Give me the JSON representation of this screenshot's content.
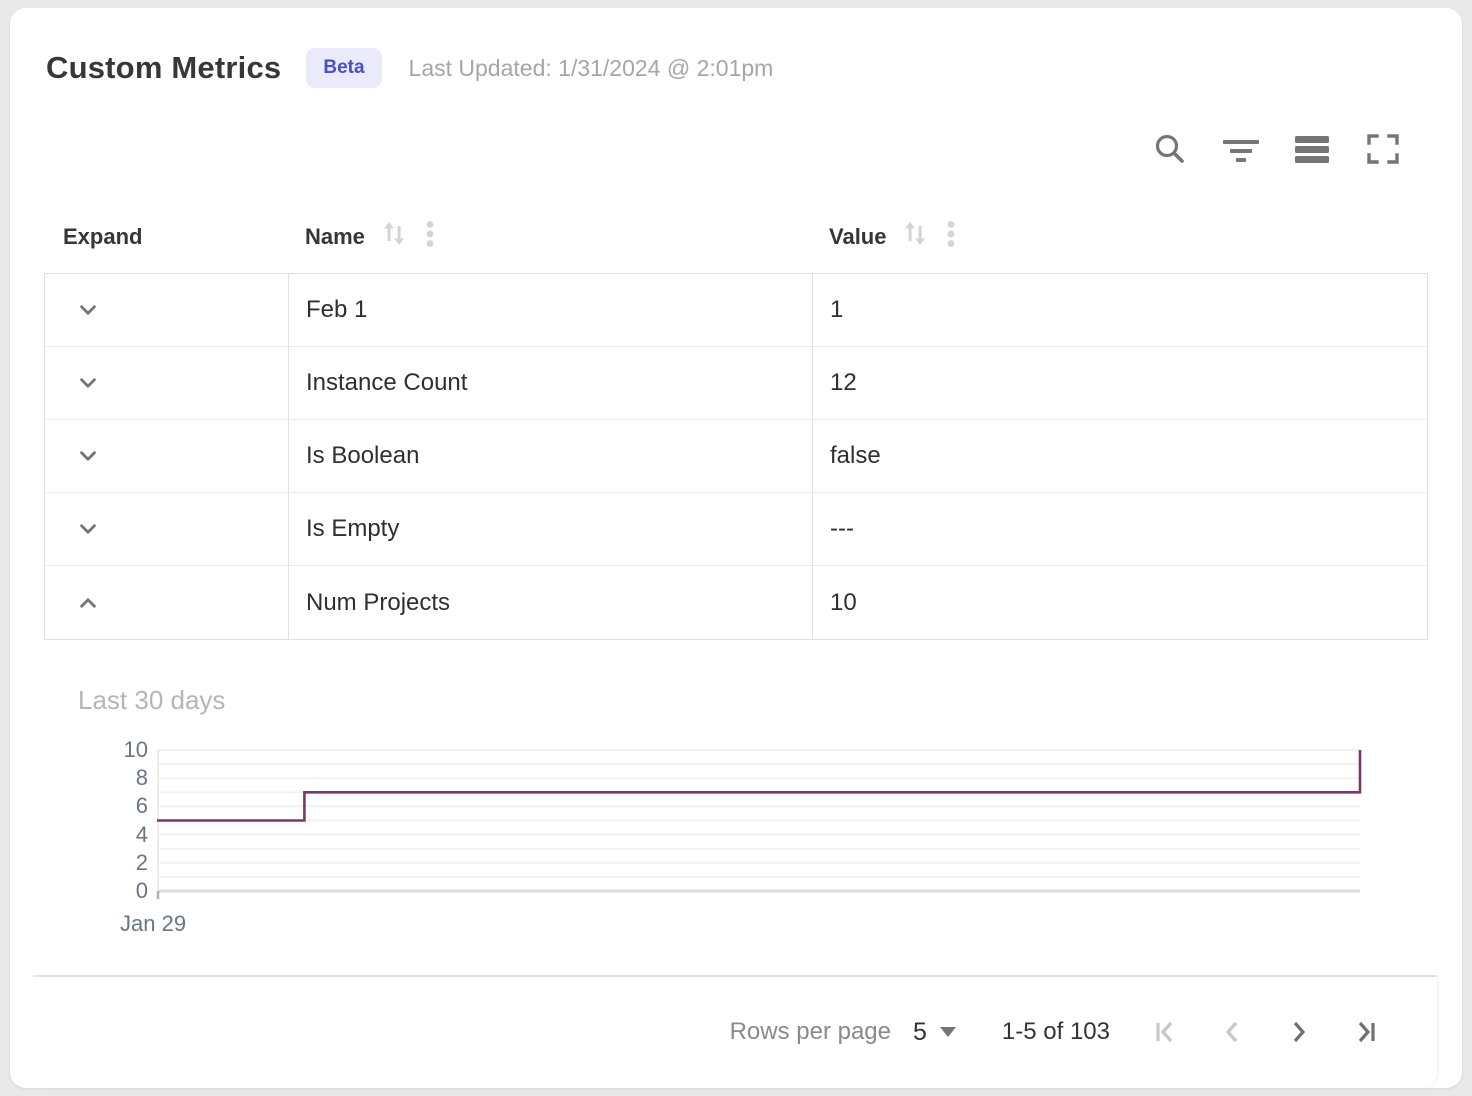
{
  "header": {
    "title": "Custom Metrics",
    "badge": "Beta",
    "last_updated": "Last Updated: 1/31/2024 @ 2:01pm"
  },
  "colors": {
    "badge_bg": "#eaeafb",
    "badge_text": "#4b4fc4",
    "chart_line": "#7b3768"
  },
  "toolbar": {
    "icons": [
      "search-icon",
      "filter-icon",
      "density-icon",
      "fullscreen-icon"
    ]
  },
  "table": {
    "columns": [
      {
        "label": "Expand",
        "sortable": false
      },
      {
        "label": "Name",
        "sortable": true
      },
      {
        "label": "Value",
        "sortable": true
      }
    ],
    "rows": [
      {
        "name": "Feb 1",
        "value": "1",
        "expanded": false
      },
      {
        "name": "Instance Count",
        "value": "12",
        "expanded": false
      },
      {
        "name": "Is Boolean",
        "value": "false",
        "expanded": false
      },
      {
        "name": "Is Empty",
        "value": "---",
        "expanded": false
      },
      {
        "name": "Num Projects",
        "value": "10",
        "expanded": true
      }
    ]
  },
  "detail": {
    "label": "Last 30 days"
  },
  "chart_data": {
    "type": "line",
    "title": "Last 30 days",
    "line_style": "step-after",
    "series_name": "Num Projects",
    "x_range": "last 30 days starting Jan 29",
    "x_tick_labels": [
      "Jan 29"
    ],
    "yticks": [
      0,
      2,
      4,
      6,
      8,
      10
    ],
    "ylim": [
      0,
      10
    ],
    "grid": "horizontal lines every 1 unit",
    "legend": "none",
    "points": [
      {
        "x": 0,
        "y": 5
      },
      {
        "x": 0.1225,
        "y": 5
      },
      {
        "x": 0.1225,
        "y": 7
      },
      {
        "x": 1,
        "y": 7
      },
      {
        "x": 1,
        "y": 10
      }
    ]
  },
  "footer": {
    "rows_per_page_label": "Rows per page",
    "rows_per_page_value": "5",
    "range_label": "1-5 of 103",
    "pagination": {
      "first_enabled": false,
      "prev_enabled": false,
      "next_enabled": true,
      "last_enabled": true
    }
  }
}
